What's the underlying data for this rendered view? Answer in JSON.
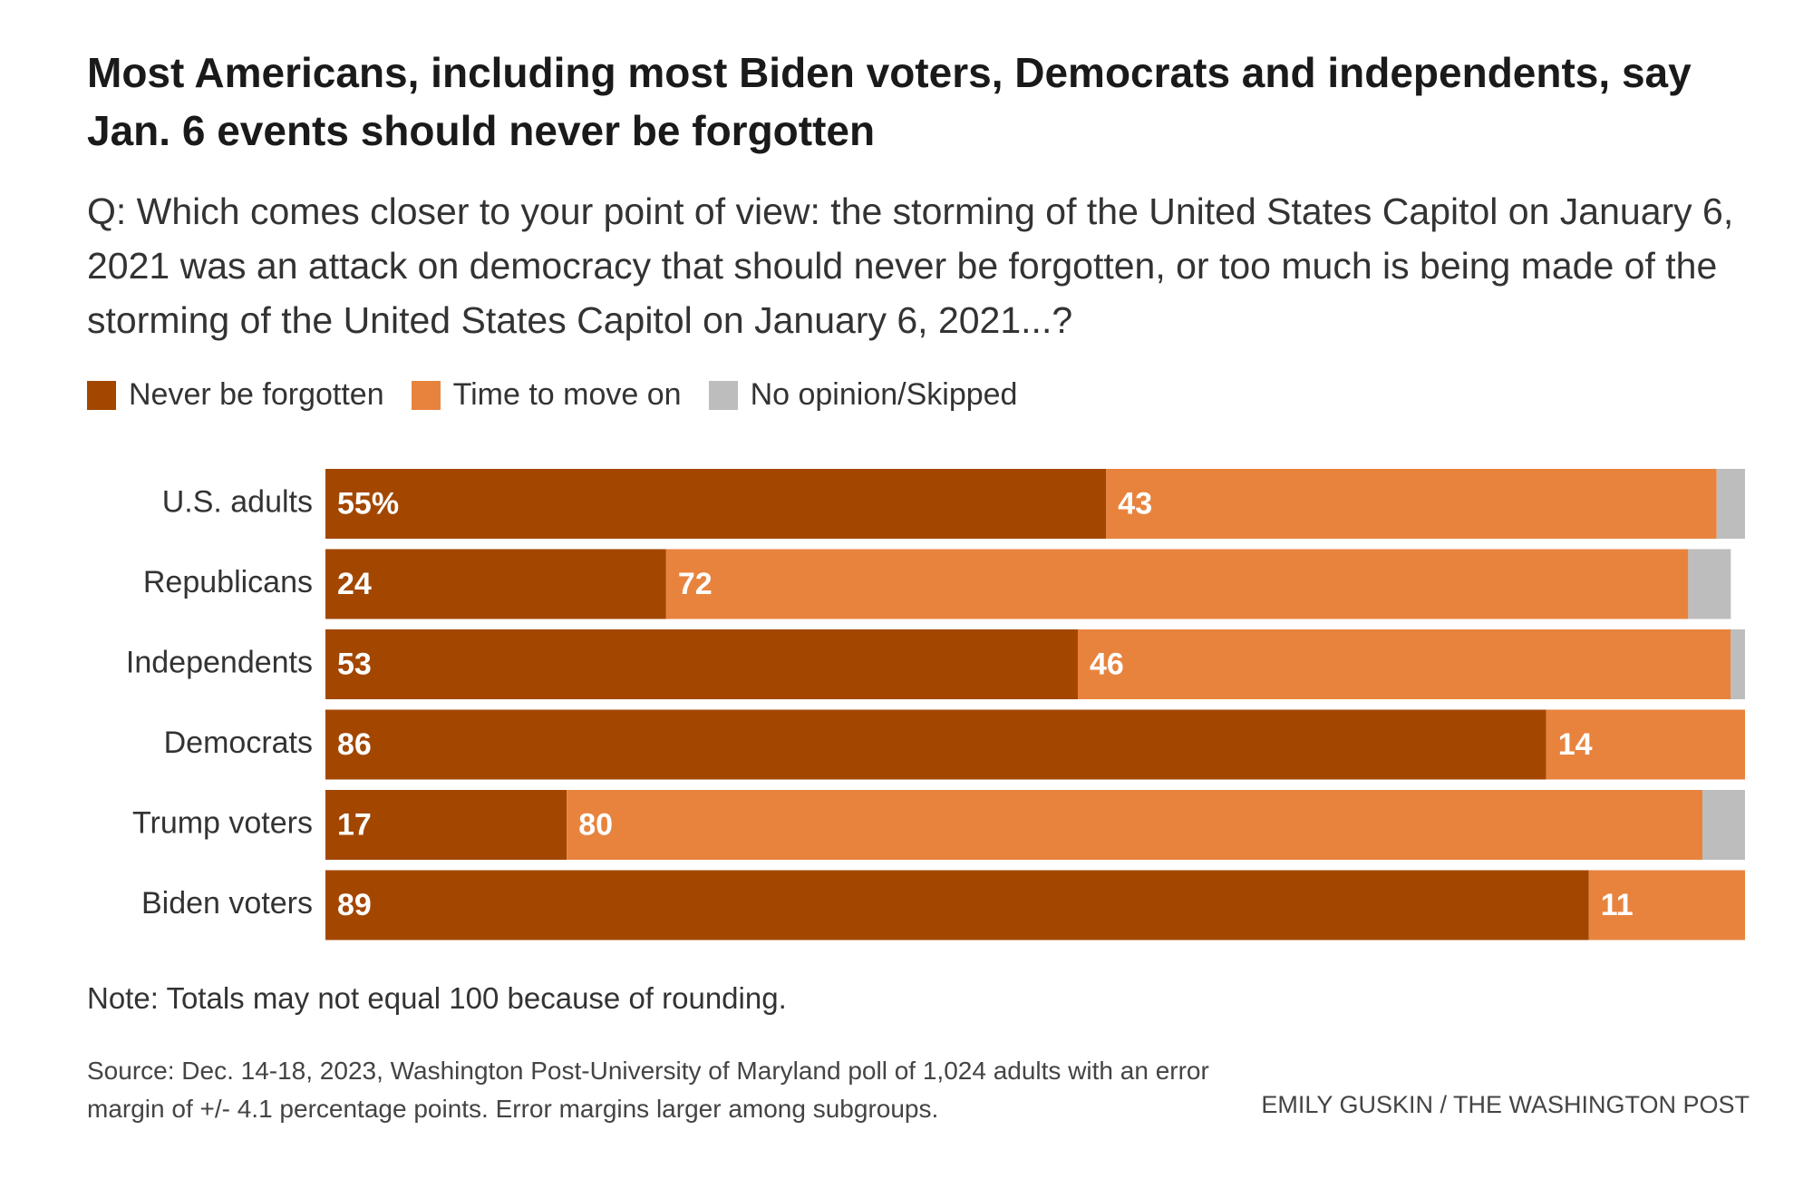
{
  "chart_data": {
    "type": "stacked_bar_horizontal",
    "title": "Most Americans, including most Biden voters, Democrats and independents, say Jan. 6 events should never be forgotten",
    "subtitle": "Q: Which comes closer to your point of view: the storming of the United States Capitol on January 6, 2021 was an attack on democracy that should never be forgotten, or too much is being made of the storming of the United States Capitol on January 6, 2021...?",
    "categories": [
      "U.S. adults",
      "Republicans",
      "Independents",
      "Democrats",
      "Trump voters",
      "Biden voters"
    ],
    "series": [
      {
        "name": "Never be forgotten",
        "color": "#a34700",
        "values": [
          55,
          24,
          53,
          86,
          17,
          89
        ],
        "value_labels": [
          "55%",
          "24",
          "53",
          "86",
          "17",
          "89"
        ]
      },
      {
        "name": "Time to move on",
        "color": "#e8833e",
        "values": [
          43,
          72,
          46,
          14,
          80,
          11
        ]
      },
      {
        "name": "No opinion/Skipped",
        "color": "#bdbdbd",
        "values": [
          2,
          3,
          1,
          0,
          3,
          0
        ],
        "data_labels": false
      }
    ],
    "xlim": [
      0,
      100
    ],
    "note": "Note: Totals may not equal 100 because of rounding.",
    "source": "Source: Dec. 14-18, 2023, Washington Post-University of Maryland poll of 1,024 adults with an error margin of +/- 4.1 percentage points. Error margins larger among subgroups.",
    "credit": "EMILY GUSKIN / THE WASHINGTON POST"
  }
}
